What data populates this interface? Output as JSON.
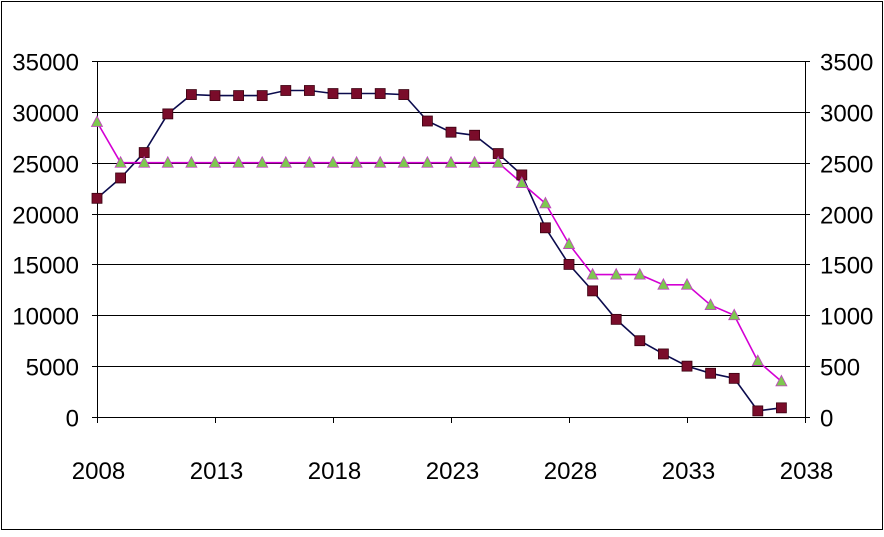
{
  "chart_data": {
    "type": "line",
    "title": "",
    "xlabel": "",
    "ylabel": "",
    "y2label": "",
    "xlim": [
      2008,
      2038
    ],
    "ylim": [
      0,
      35000
    ],
    "y2lim": [
      0,
      3500
    ],
    "grid": true,
    "legend": "none",
    "x_ticks": [
      "2008",
      "2013",
      "2018",
      "2023",
      "2028",
      "2033",
      "2038"
    ],
    "y_ticks": [
      "0",
      "5000",
      "10000",
      "15000",
      "20000",
      "25000",
      "30000",
      "35000"
    ],
    "y2_ticks": [
      "0",
      "500",
      "1000",
      "1500",
      "2000",
      "2500",
      "3000",
      "3500"
    ],
    "series": [
      {
        "axis": "left",
        "color": "#0b0b4d",
        "marker_color": "#7a0c2a",
        "marker": "square",
        "x": [
          2008,
          2009,
          2010,
          2011,
          2012,
          2013,
          2014,
          2015,
          2016,
          2017,
          2018,
          2019,
          2020,
          2021,
          2022,
          2023,
          2024,
          2025,
          2026,
          2027,
          2028,
          2029,
          2030,
          2031,
          2032,
          2033,
          2034,
          2035,
          2036,
          2037
        ],
        "values": [
          21500,
          23500,
          26000,
          29800,
          31700,
          31600,
          31600,
          31600,
          32100,
          32100,
          31800,
          31800,
          31800,
          31700,
          29100,
          28000,
          27700,
          25900,
          23800,
          18600,
          15000,
          12400,
          9600,
          7500,
          6200,
          5000,
          4300,
          3800,
          600,
          900
        ]
      },
      {
        "axis": "right",
        "color": "#d400d4",
        "marker_color": "#7ec850",
        "marker": "triangle",
        "x": [
          2008,
          2009,
          2010,
          2011,
          2012,
          2013,
          2014,
          2015,
          2016,
          2017,
          2018,
          2019,
          2020,
          2021,
          2022,
          2023,
          2024,
          2025,
          2026,
          2027,
          2028,
          2029,
          2030,
          2031,
          2032,
          2033,
          2034,
          2035,
          2036,
          2037
        ],
        "values": [
          2900,
          2500,
          2500,
          2500,
          2500,
          2500,
          2500,
          2500,
          2500,
          2500,
          2500,
          2500,
          2500,
          2500,
          2500,
          2500,
          2500,
          2500,
          2300,
          2100,
          1700,
          1400,
          1400,
          1400,
          1300,
          1300,
          1100,
          1000,
          550,
          350
        ]
      }
    ]
  }
}
